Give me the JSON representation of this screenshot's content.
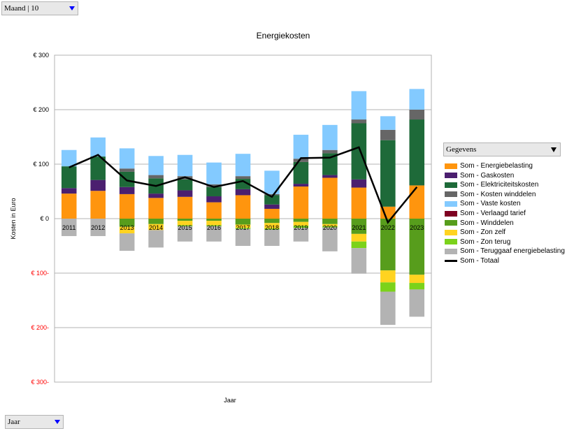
{
  "filter": {
    "label": "Maand | 10"
  },
  "row_field": {
    "label": "Jaar"
  },
  "legend_field": {
    "label": "Gegevens"
  },
  "colors": {
    "Energiebelasting": "#ff950e",
    "Gaskosten": "#4b1f6f",
    "Elektriciteitskosten": "#1e6a39",
    "Kosten winddelen": "#666666",
    "Vaste kosten": "#83caff",
    "Verlaagd tarief": "#7e0021",
    "Winddelen": "#579d1c",
    "Zon zelf": "#ffd320",
    "Zon terug": "#7bd21a",
    "Teruggaaf energiebelasting": "#b3b3b3",
    "Totaal": "#000000",
    "negative_tick": "#ff0000"
  },
  "chart_data": {
    "type": "bar",
    "stacked": true,
    "title": "Energiekosten",
    "xlabel": "Jaar",
    "ylabel": "Kosten in Euro",
    "ylim": [
      -300,
      300
    ],
    "ytick_labels": [
      "€ 300",
      "€ 200",
      "€ 100",
      "€ 0",
      "€ 100-",
      "€ 200-",
      "€ 300-"
    ],
    "grid": true,
    "legend_position": "right",
    "categories": [
      "2011",
      "2012",
      "2013",
      "2014",
      "2015",
      "2016",
      "2017",
      "2018",
      "2019",
      "2020",
      "2021",
      "2022",
      "2023"
    ],
    "series": [
      {
        "name": "Som - Energiebelasting",
        "values": [
          46,
          51,
          45,
          38,
          40,
          30,
          43,
          18,
          59,
          75,
          57,
          22,
          61
        ]
      },
      {
        "name": "Som - Gaskosten",
        "values": [
          10,
          20,
          13,
          8,
          12,
          11,
          11,
          8,
          5,
          5,
          15,
          0,
          0
        ]
      },
      {
        "name": "Som - Elektriciteitskosten",
        "values": [
          40,
          43,
          28,
          28,
          20,
          17,
          19,
          17,
          40,
          40,
          103,
          122,
          121
        ]
      },
      {
        "name": "Som - Kosten winddelen",
        "values": [
          0,
          0,
          6,
          6,
          6,
          5,
          5,
          2,
          6,
          6,
          7,
          19,
          18
        ]
      },
      {
        "name": "Som - Vaste kosten",
        "values": [
          30,
          35,
          37,
          35,
          39,
          40,
          41,
          43,
          44,
          46,
          52,
          25,
          38
        ]
      },
      {
        "name": "Som - Verlaagd tarief",
        "values": [
          0,
          0,
          0,
          0,
          0,
          0,
          0,
          0,
          0,
          0,
          0,
          0,
          0
        ]
      },
      {
        "name": "Som - Winddelen",
        "values": [
          0,
          0,
          -15,
          -10,
          -4,
          -4,
          -11,
          -8,
          -6,
          -10,
          -28,
          -95,
          -103
        ]
      },
      {
        "name": "Som - Zon zelf",
        "values": [
          0,
          0,
          -12,
          -11,
          -8,
          -8,
          -6,
          -10,
          -7,
          -4,
          -14,
          -22,
          -15
        ]
      },
      {
        "name": "Som - Zon terug",
        "values": [
          0,
          0,
          0,
          0,
          -2,
          -2,
          -2,
          -2,
          -4,
          -2,
          -12,
          -17,
          -12
        ]
      },
      {
        "name": "Som - Teruggaaf energiebelasting",
        "values": [
          -32,
          -32,
          -32,
          -32,
          -28,
          -28,
          -31,
          -30,
          -25,
          -44,
          -47,
          -61,
          -50
        ]
      },
      {
        "name": "Som - Totaal",
        "type": "line",
        "values": [
          94,
          117,
          70,
          60,
          76,
          58,
          69,
          40,
          111,
          112,
          131,
          -7,
          58
        ]
      }
    ]
  }
}
